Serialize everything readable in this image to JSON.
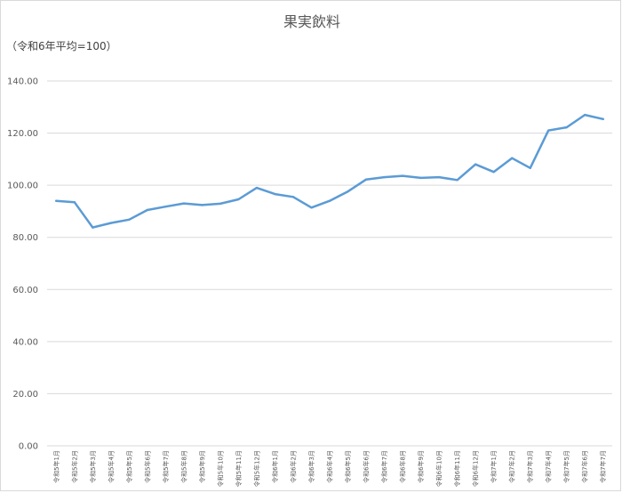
{
  "chart_data": {
    "type": "line",
    "title": "果実飲料",
    "unit_note": "（令和6年平均=100）",
    "ylim": [
      0,
      140
    ],
    "yticks": [
      "0.00",
      "20.00",
      "40.00",
      "60.00",
      "80.00",
      "100.00",
      "120.00",
      "140.00"
    ],
    "grid": true,
    "legend": "none",
    "line_color": "#5b9bd5",
    "categories": [
      "令和5年1月",
      "令和5年2月",
      "令和5年3月",
      "令和5年4月",
      "令和5年5月",
      "令和5年6月",
      "令和5年7月",
      "令和5年8月",
      "令和5年9月",
      "令和5年10月",
      "令和5年11月",
      "令和5年12月",
      "令和6年1月",
      "令和6年2月",
      "令和6年3月",
      "令和6年4月",
      "令和6年5月",
      "令和6年6月",
      "令和6年7月",
      "令和6年8月",
      "令和6年9月",
      "令和6年10月",
      "令和6年11月",
      "令和6年12月",
      "令和7年1月",
      "令和7年2月",
      "令和7年3月",
      "令和7年4月",
      "令和7年5月",
      "令和7年6月",
      "令和7年7月"
    ],
    "values": [
      94.0,
      93.5,
      83.8,
      85.5,
      86.8,
      90.5,
      91.8,
      93.0,
      92.4,
      92.9,
      94.6,
      99.0,
      96.6,
      95.5,
      91.4,
      94.0,
      97.6,
      102.2,
      103.1,
      103.6,
      102.8,
      103.1,
      102.0,
      108.0,
      105.1,
      110.4,
      106.6,
      121.0,
      122.2,
      127.0,
      125.4
    ]
  }
}
